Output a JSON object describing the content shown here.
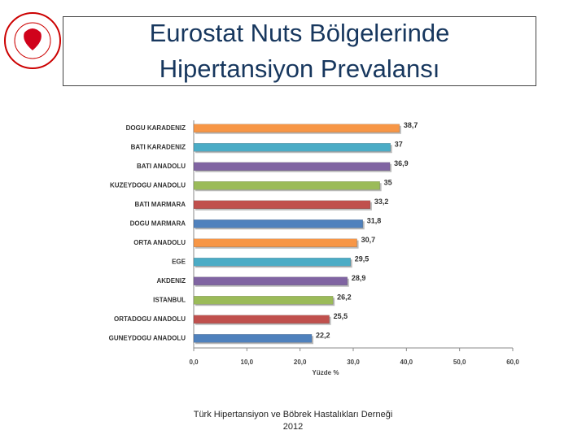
{
  "chart_data": {
    "type": "barh",
    "title": "Eurostat Nuts Bölgelerinde Hipertansiyon Prevalansı",
    "categories": [
      "DOGU KARADENIZ",
      "BATI KARADENIZ",
      "BATI ANADOLU",
      "KUZEYDOGU ANADOLU",
      "BATI MARMARA",
      "DOGU MARMARA",
      "ORTA ANADOLU",
      "EGE",
      "AKDENIZ",
      "ISTANBUL",
      "ORTADOGU ANADOLU",
      "GUNEYDOGU ANADOLU"
    ],
    "values": [
      38.7,
      37,
      36.9,
      35,
      33.2,
      31.8,
      30.7,
      29.5,
      28.9,
      26.2,
      25.5,
      22.2
    ],
    "value_labels": [
      "38,7",
      "37",
      "36,9",
      "35",
      "33,2",
      "31,8",
      "30,7",
      "29,5",
      "28,9",
      "26,2",
      "25,5",
      "22,2"
    ],
    "colors": [
      "#f79646",
      "#4bacc6",
      "#8064a2",
      "#9bbb59",
      "#c0504d",
      "#4f81bd",
      "#f79646",
      "#4bacc6",
      "#8064a2",
      "#9bbb59",
      "#c0504d",
      "#4f81bd"
    ],
    "xlabel": "Yüzde %",
    "xlim": [
      0,
      60
    ],
    "xticks": [
      {
        "value": 0,
        "label": "0,0"
      },
      {
        "value": 10,
        "label": "10,0"
      },
      {
        "value": 20,
        "label": "20,0"
      },
      {
        "value": 30,
        "label": "30,0"
      },
      {
        "value": 40,
        "label": "40,0"
      },
      {
        "value": 50,
        "label": "50,0"
      },
      {
        "value": 60,
        "label": "60,0"
      }
    ]
  },
  "footer": {
    "source": "Türk Hipertansiyon ve Böbrek Hastalıkları Derneği",
    "year": "2012"
  }
}
